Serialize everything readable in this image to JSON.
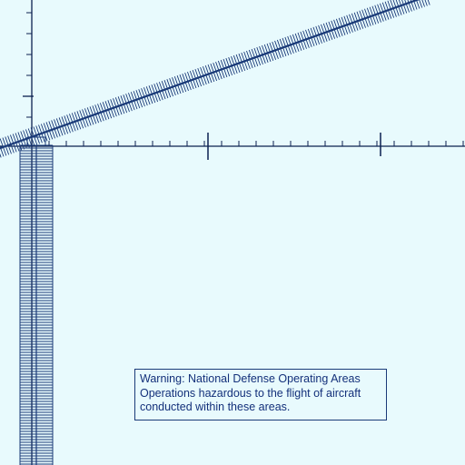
{
  "map": {
    "background_color": "#e8fafd",
    "line_color": "#0b2050",
    "boundary_color": "#1a3a78",
    "warning": {
      "lines": [
        "Warning: National Defense Operating Areas",
        "Operations hazardous to the flight of aircraft",
        "conducted within these areas."
      ]
    }
  }
}
